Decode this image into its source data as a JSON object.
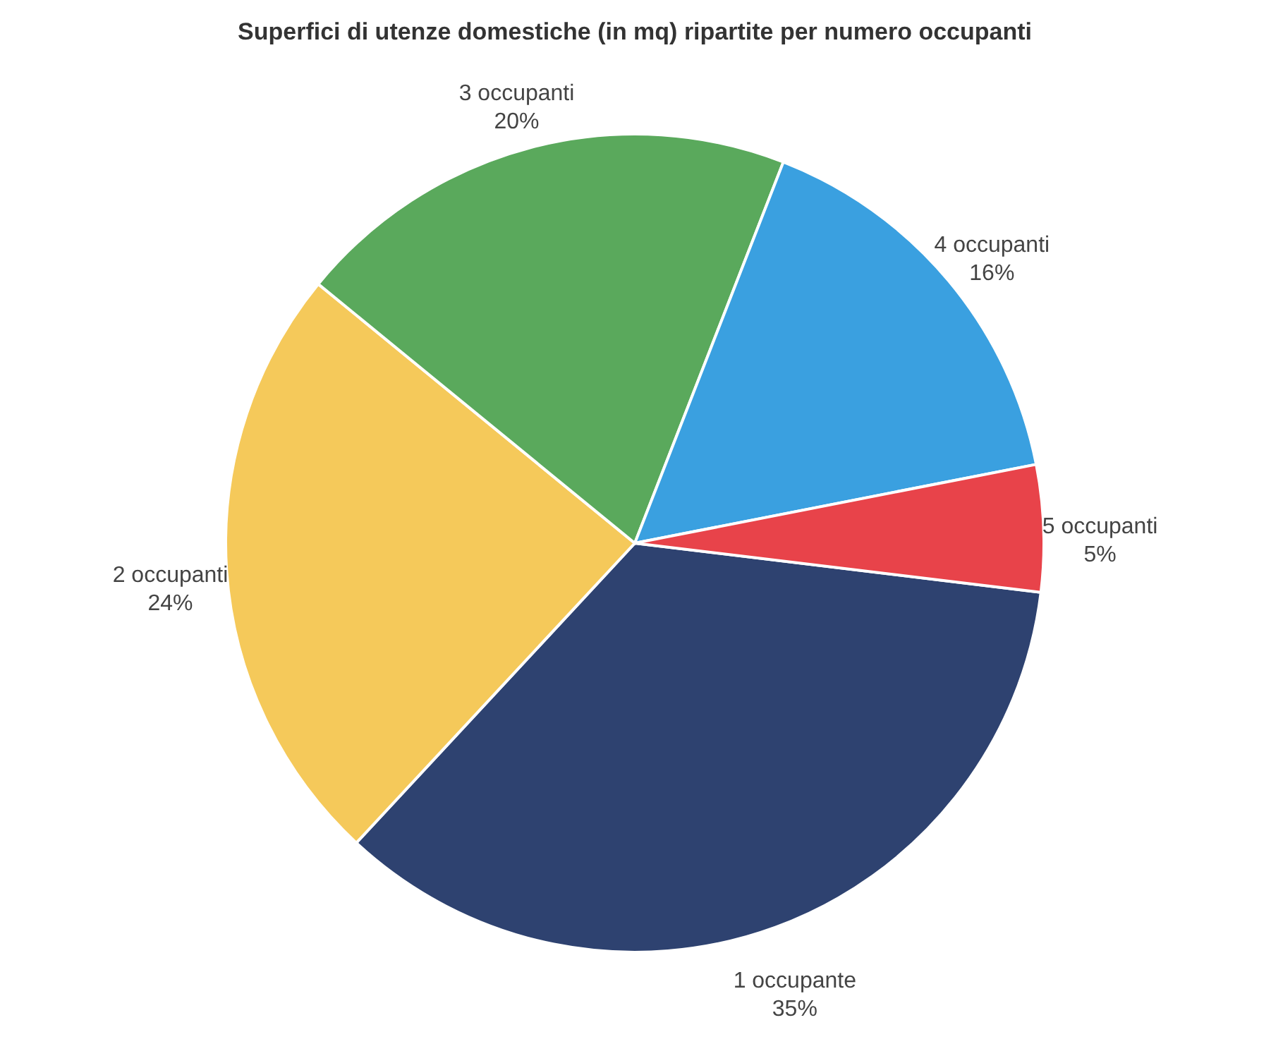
{
  "chart_data": {
    "type": "pie",
    "title": "Superfici di utenze domestiche (in mq) ripartite per numero occupanti",
    "categories": [
      "1 occupante",
      "2 occupanti",
      "3 occupanti",
      "4 occupanti",
      "5 occupanti"
    ],
    "values": [
      35,
      24,
      20,
      16,
      5
    ],
    "colors": [
      "#2e4270",
      "#f5c95a",
      "#5aa95c",
      "#3aa0e0",
      "#e8434a"
    ],
    "value_labels": [
      "35%",
      "24%",
      "20%",
      "16%",
      "5%"
    ],
    "legend": false
  }
}
